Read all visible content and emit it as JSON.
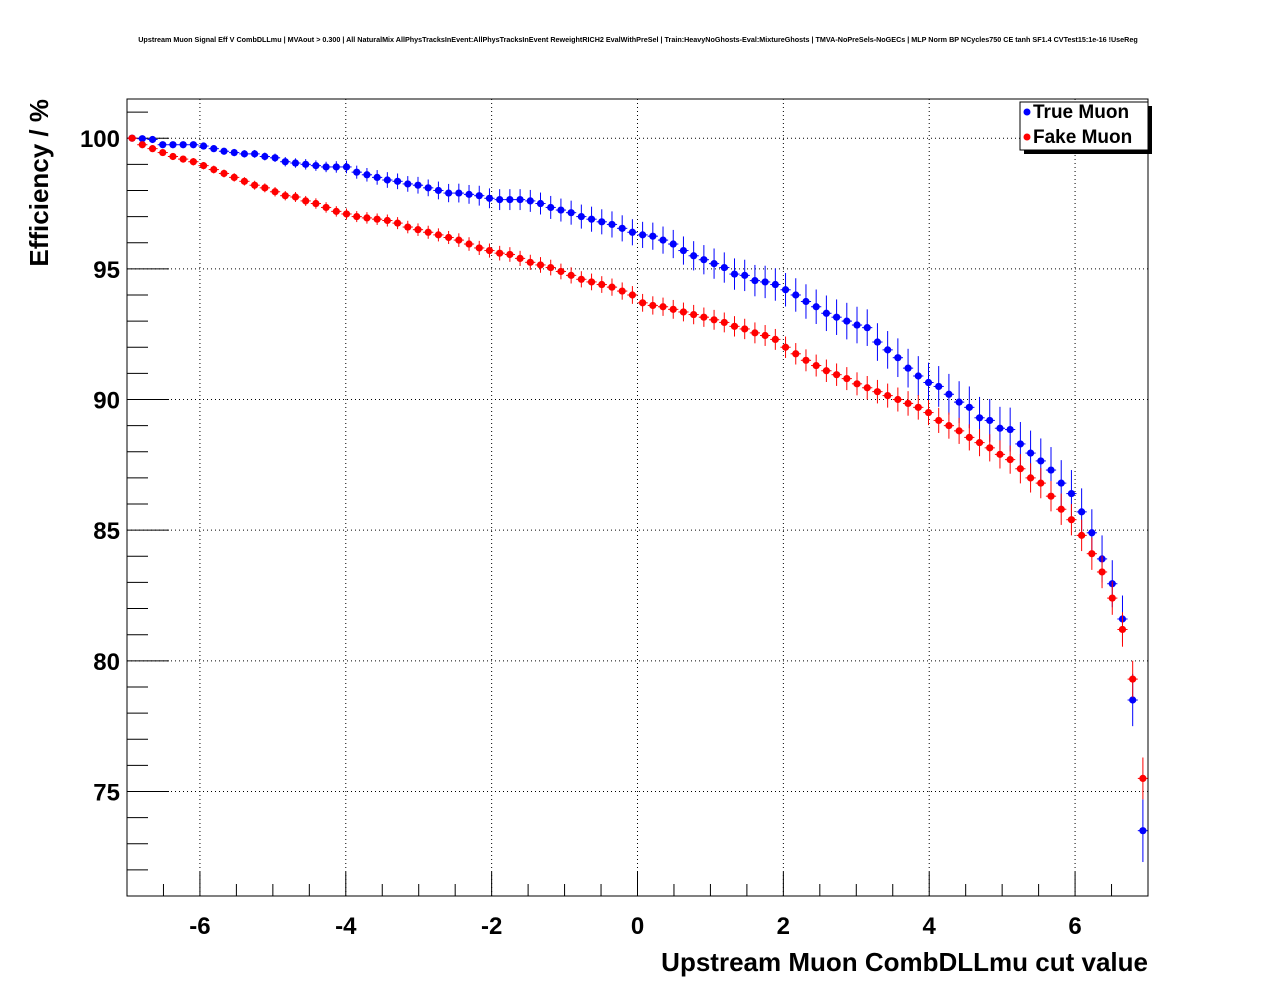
{
  "chart_data": {
    "type": "scatter",
    "title": "Upstream Muon Signal Eff V CombDLLmu | MVAout > 0.300 | All NaturalMix AllPhysTracksInEvent:AllPhysTracksInEvent ReweightRICH2 EvalWithPreSel | Train:HeavyNoGhosts-Eval:MixtureGhosts | TMVA-NoPreSels-NoGECs | MLP Norm BP NCycles750 CE tanh SF1.4 CVTest15:1e-16 !UseReg",
    "xlabel": "Upstream Muon CombDLLmu cut value",
    "ylabel": "Efficiency / %",
    "xlim": [
      -7,
      7
    ],
    "ylim": [
      71,
      101.5
    ],
    "xticks": [
      -6,
      -4,
      -2,
      0,
      2,
      4,
      6
    ],
    "yticks": [
      75,
      80,
      85,
      90,
      95,
      100
    ],
    "xtick_labels": [
      "-6",
      "-4",
      "-2",
      "0",
      "2",
      "4",
      "6"
    ],
    "ytick_labels": [
      "75",
      "80",
      "85",
      "90",
      "95",
      "100"
    ],
    "grid": true,
    "legend_position": "top-right",
    "x_start": -6.93,
    "x_step": 0.14,
    "x_halfwidth": 0.07,
    "series": [
      {
        "name": "True Muon",
        "color": "#0000ff",
        "values": [
          100.0,
          99.98,
          99.95,
          99.75,
          99.75,
          99.75,
          99.75,
          99.7,
          99.6,
          99.5,
          99.45,
          99.4,
          99.4,
          99.3,
          99.25,
          99.1,
          99.05,
          99.0,
          98.95,
          98.9,
          98.9,
          98.9,
          98.7,
          98.6,
          98.5,
          98.4,
          98.35,
          98.25,
          98.2,
          98.1,
          98.0,
          97.9,
          97.9,
          97.85,
          97.8,
          97.7,
          97.65,
          97.65,
          97.65,
          97.6,
          97.5,
          97.35,
          97.25,
          97.15,
          97.0,
          96.9,
          96.8,
          96.7,
          96.55,
          96.4,
          96.3,
          96.25,
          96.1,
          95.95,
          95.7,
          95.5,
          95.35,
          95.2,
          95.05,
          94.8,
          94.75,
          94.55,
          94.5,
          94.4,
          94.2,
          94.0,
          93.75,
          93.55,
          93.3,
          93.15,
          93.0,
          92.85,
          92.75,
          92.2,
          91.9,
          91.6,
          91.2,
          90.9,
          90.65,
          90.5,
          90.2,
          89.9,
          89.7,
          89.3,
          89.2,
          88.9,
          88.85,
          88.3,
          87.95,
          87.65,
          87.3,
          86.8,
          86.4,
          85.7,
          84.9,
          83.9,
          82.95,
          81.6,
          78.5,
          73.5
        ],
        "yerr": [
          0.05,
          0.05,
          0.08,
          0.1,
          0.1,
          0.1,
          0.1,
          0.12,
          0.12,
          0.12,
          0.14,
          0.14,
          0.15,
          0.15,
          0.16,
          0.18,
          0.18,
          0.2,
          0.2,
          0.2,
          0.22,
          0.24,
          0.25,
          0.26,
          0.28,
          0.3,
          0.3,
          0.3,
          0.32,
          0.32,
          0.34,
          0.35,
          0.36,
          0.36,
          0.38,
          0.38,
          0.4,
          0.4,
          0.4,
          0.42,
          0.42,
          0.44,
          0.44,
          0.46,
          0.46,
          0.48,
          0.48,
          0.5,
          0.5,
          0.5,
          0.5,
          0.52,
          0.52,
          0.54,
          0.54,
          0.56,
          0.56,
          0.58,
          0.58,
          0.6,
          0.6,
          0.6,
          0.62,
          0.62,
          0.64,
          0.64,
          0.66,
          0.66,
          0.68,
          0.68,
          0.7,
          0.7,
          0.7,
          0.72,
          0.72,
          0.74,
          0.74,
          0.76,
          0.76,
          0.78,
          0.78,
          0.8,
          0.8,
          0.8,
          0.82,
          0.82,
          0.84,
          0.84,
          0.86,
          0.86,
          0.88,
          0.88,
          0.9,
          0.9,
          0.9,
          0.9,
          0.9,
          0.9,
          1.0,
          1.2
        ]
      },
      {
        "name": "Fake Muon",
        "color": "#ff0000",
        "values": [
          100.0,
          99.75,
          99.6,
          99.45,
          99.3,
          99.2,
          99.1,
          98.95,
          98.8,
          98.65,
          98.5,
          98.35,
          98.2,
          98.1,
          97.95,
          97.8,
          97.75,
          97.6,
          97.5,
          97.35,
          97.2,
          97.1,
          97.0,
          96.95,
          96.9,
          96.85,
          96.75,
          96.6,
          96.5,
          96.4,
          96.3,
          96.2,
          96.1,
          95.95,
          95.8,
          95.7,
          95.6,
          95.55,
          95.4,
          95.25,
          95.15,
          95.05,
          94.9,
          94.75,
          94.6,
          94.5,
          94.4,
          94.3,
          94.15,
          94.0,
          93.7,
          93.6,
          93.55,
          93.45,
          93.35,
          93.25,
          93.15,
          93.05,
          92.95,
          92.8,
          92.7,
          92.55,
          92.45,
          92.3,
          92.0,
          91.75,
          91.5,
          91.3,
          91.1,
          90.95,
          90.8,
          90.6,
          90.45,
          90.3,
          90.15,
          90.0,
          89.85,
          89.7,
          89.5,
          89.2,
          89.0,
          88.8,
          88.55,
          88.35,
          88.15,
          87.9,
          87.7,
          87.35,
          87.0,
          86.8,
          86.3,
          85.8,
          85.4,
          84.8,
          84.1,
          83.4,
          82.4,
          81.2,
          79.3,
          75.5
        ],
        "yerr": [
          0.05,
          0.08,
          0.1,
          0.1,
          0.12,
          0.12,
          0.14,
          0.14,
          0.15,
          0.15,
          0.16,
          0.16,
          0.17,
          0.17,
          0.18,
          0.18,
          0.19,
          0.19,
          0.2,
          0.2,
          0.2,
          0.21,
          0.21,
          0.22,
          0.22,
          0.23,
          0.23,
          0.24,
          0.24,
          0.25,
          0.25,
          0.25,
          0.26,
          0.26,
          0.27,
          0.27,
          0.28,
          0.28,
          0.29,
          0.29,
          0.3,
          0.3,
          0.3,
          0.31,
          0.31,
          0.32,
          0.32,
          0.33,
          0.33,
          0.34,
          0.34,
          0.35,
          0.35,
          0.36,
          0.36,
          0.37,
          0.37,
          0.38,
          0.38,
          0.39,
          0.39,
          0.4,
          0.4,
          0.4,
          0.41,
          0.41,
          0.42,
          0.42,
          0.43,
          0.43,
          0.44,
          0.44,
          0.45,
          0.45,
          0.46,
          0.46,
          0.47,
          0.47,
          0.48,
          0.48,
          0.5,
          0.5,
          0.5,
          0.52,
          0.52,
          0.54,
          0.54,
          0.56,
          0.56,
          0.58,
          0.58,
          0.6,
          0.6,
          0.6,
          0.62,
          0.62,
          0.64,
          0.66,
          0.7,
          0.8
        ]
      }
    ]
  }
}
